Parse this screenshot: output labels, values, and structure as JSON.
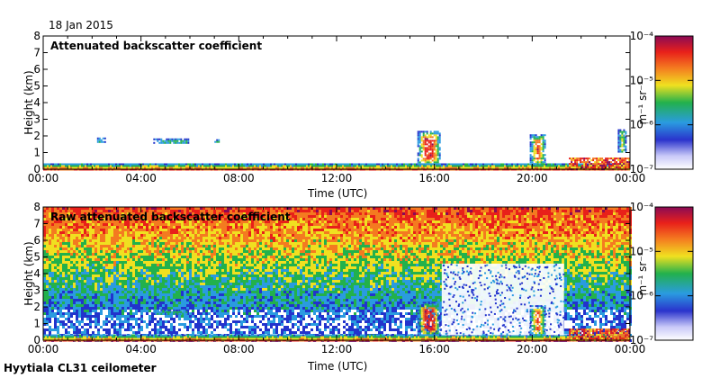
{
  "date": "18 Jan 2015",
  "caption": "Hyytiala CL31 ceilometer",
  "colors": {
    "colormap": [
      "#ffffff",
      "#2233cc",
      "#2a9be0",
      "#22b14c",
      "#f0e020",
      "#f47a20",
      "#e8201a",
      "#8a0a55"
    ]
  },
  "chart_data": [
    {
      "type": "heatmap",
      "title": "Attenuated backscatter coefficient",
      "xlabel": "Time (UTC)",
      "ylabel": "Height (km)",
      "xlim": [
        "00:00",
        "24:00"
      ],
      "xticks": [
        "00:00",
        "04:00",
        "08:00",
        "12:00",
        "16:00",
        "20:00",
        "00:00"
      ],
      "ylim": [
        0,
        8
      ],
      "yticks": [
        "0",
        "1",
        "2",
        "3",
        "4",
        "5",
        "6",
        "7",
        "8"
      ],
      "colorbar": {
        "label": "m⁻¹ sr⁻¹",
        "scale": "log",
        "range": [
          1e-07,
          0.0001
        ],
        "ticks": [
          "10⁻⁷",
          "10⁻⁶",
          "10⁻⁵",
          "10⁻⁴"
        ]
      },
      "features": [
        {
          "kind": "boundary-layer",
          "time_start": 0,
          "time_end": 24,
          "height_km": [
            0,
            0.35
          ]
        },
        {
          "kind": "cloud",
          "time_start": 2.2,
          "time_end": 2.5,
          "height_km": [
            1.6,
            1.9
          ]
        },
        {
          "kind": "cloud",
          "time_start": 4.5,
          "time_end": 5.9,
          "height_km": [
            1.55,
            1.85
          ]
        },
        {
          "kind": "cloud",
          "time_start": 7.0,
          "time_end": 7.2,
          "height_km": [
            1.6,
            1.8
          ]
        },
        {
          "kind": "cloud",
          "time_start": 15.3,
          "time_end": 16.2,
          "height_km": [
            0.3,
            2.3
          ]
        },
        {
          "kind": "cloud",
          "time_start": 19.9,
          "time_end": 20.5,
          "height_km": [
            0.3,
            2.1
          ]
        },
        {
          "kind": "precipitation",
          "time_start": 21.5,
          "time_end": 24,
          "height_km": [
            0,
            0.7
          ]
        },
        {
          "kind": "cloud",
          "time_start": 23.5,
          "time_end": 23.8,
          "height_km": [
            1.0,
            2.4
          ]
        }
      ]
    },
    {
      "type": "heatmap",
      "title": "Raw attenuated backscatter coefficient",
      "xlabel": "Time (UTC)",
      "ylabel": "Height (km)",
      "xlim": [
        "00:00",
        "24:00"
      ],
      "xticks": [
        "00:00",
        "04:00",
        "08:00",
        "12:00",
        "16:00",
        "20:00",
        "00:00"
      ],
      "ylim": [
        0,
        8
      ],
      "yticks": [
        "0",
        "1",
        "2",
        "3",
        "4",
        "5",
        "6",
        "7",
        "8"
      ],
      "colorbar": {
        "label": "m⁻¹ sr⁻¹",
        "scale": "log",
        "range": [
          1e-07,
          0.0001
        ],
        "ticks": [
          "10⁻⁷",
          "10⁻⁶",
          "10⁻⁵",
          "10⁻⁴"
        ]
      },
      "features": [
        {
          "kind": "noise-gradient",
          "time_start": 0,
          "time_end": 24,
          "height_km": [
            0,
            8
          ]
        },
        {
          "kind": "boundary-layer",
          "time_start": 0,
          "time_end": 24,
          "height_km": [
            0,
            0.35
          ]
        },
        {
          "kind": "cloud",
          "time_start": 4.5,
          "time_end": 5.9,
          "height_km": [
            1.55,
            1.85
          ]
        },
        {
          "kind": "cloud",
          "time_start": 15.3,
          "time_end": 16.2,
          "height_km": [
            0.3,
            2.3
          ]
        },
        {
          "kind": "clear-gap",
          "time_start": 16.3,
          "time_end": 21.3,
          "height_km": [
            0.3,
            4.6
          ]
        },
        {
          "kind": "cloud",
          "time_start": 19.9,
          "time_end": 20.5,
          "height_km": [
            0.3,
            2.1
          ]
        },
        {
          "kind": "precipitation",
          "time_start": 21.5,
          "time_end": 24,
          "height_km": [
            0,
            0.7
          ]
        }
      ]
    }
  ]
}
